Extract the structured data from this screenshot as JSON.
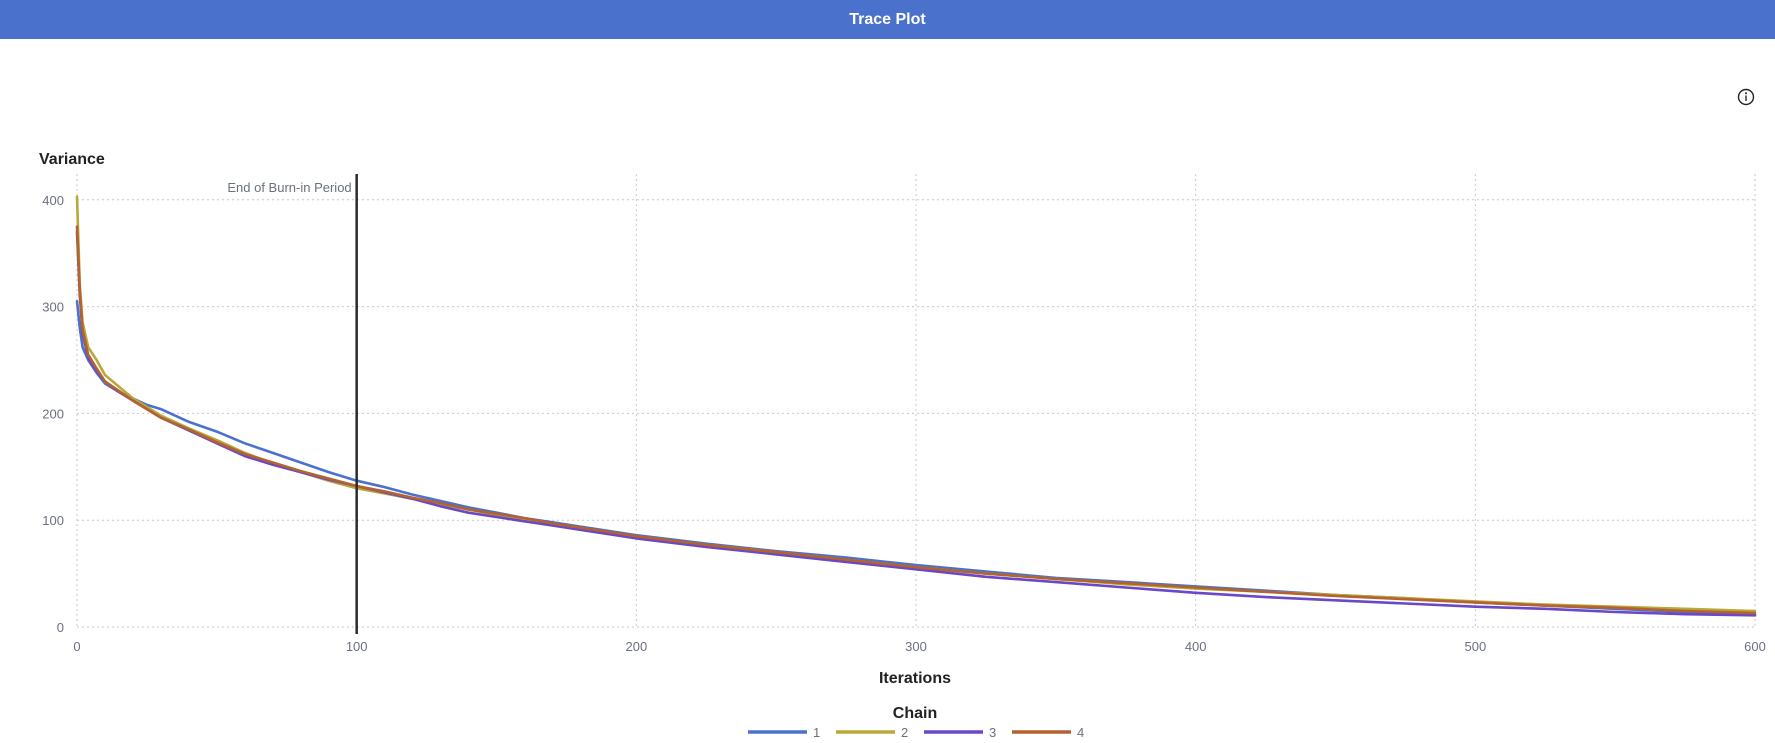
{
  "header": {
    "title": "Trace Plot"
  },
  "icons": {
    "info": "info-icon"
  },
  "chart_data": {
    "type": "line",
    "xlabel": "Iterations",
    "ylabel": "Variance",
    "xlim": [
      0,
      600
    ],
    "ylim": [
      0,
      420
    ],
    "x_ticks": [
      0,
      100,
      200,
      300,
      400,
      500,
      600
    ],
    "y_ticks": [
      0,
      100,
      200,
      300,
      400
    ],
    "grid": true,
    "reference_line": {
      "x": 100,
      "label": "End of Burn-in Period"
    },
    "legend": {
      "title": "Chain",
      "placement": "bottom"
    },
    "series": [
      {
        "name": "1",
        "color": "#4a72cc",
        "points": [
          [
            0,
            305
          ],
          [
            1,
            280
          ],
          [
            2,
            262
          ],
          [
            4,
            250
          ],
          [
            7,
            238
          ],
          [
            10,
            228
          ],
          [
            15,
            220
          ],
          [
            20,
            214
          ],
          [
            25,
            208
          ],
          [
            30,
            204
          ],
          [
            40,
            192
          ],
          [
            50,
            183
          ],
          [
            60,
            172
          ],
          [
            70,
            163
          ],
          [
            80,
            154
          ],
          [
            90,
            145
          ],
          [
            100,
            137
          ],
          [
            110,
            131
          ],
          [
            120,
            124
          ],
          [
            130,
            118
          ],
          [
            140,
            112
          ],
          [
            150,
            107
          ],
          [
            160,
            102
          ],
          [
            170,
            98
          ],
          [
            180,
            94
          ],
          [
            190,
            90
          ],
          [
            200,
            86
          ],
          [
            225,
            78
          ],
          [
            250,
            71
          ],
          [
            275,
            65
          ],
          [
            300,
            58
          ],
          [
            325,
            52
          ],
          [
            350,
            46
          ],
          [
            375,
            42
          ],
          [
            400,
            38
          ],
          [
            425,
            34
          ],
          [
            450,
            30
          ],
          [
            475,
            27
          ],
          [
            500,
            23
          ],
          [
            525,
            20
          ],
          [
            550,
            17
          ],
          [
            575,
            14
          ],
          [
            600,
            12
          ]
        ]
      },
      {
        "name": "2",
        "color": "#b9a83a",
        "points": [
          [
            0,
            403
          ],
          [
            1,
            320
          ],
          [
            2,
            285
          ],
          [
            4,
            262
          ],
          [
            7,
            250
          ],
          [
            10,
            236
          ],
          [
            15,
            225
          ],
          [
            20,
            214
          ],
          [
            25,
            206
          ],
          [
            30,
            198
          ],
          [
            40,
            186
          ],
          [
            50,
            175
          ],
          [
            60,
            163
          ],
          [
            70,
            153
          ],
          [
            80,
            145
          ],
          [
            90,
            137
          ],
          [
            100,
            130
          ],
          [
            110,
            125
          ],
          [
            120,
            120
          ],
          [
            130,
            115
          ],
          [
            140,
            110
          ],
          [
            150,
            105
          ],
          [
            160,
            101
          ],
          [
            170,
            96
          ],
          [
            180,
            92
          ],
          [
            190,
            88
          ],
          [
            200,
            84
          ],
          [
            225,
            77
          ],
          [
            250,
            70
          ],
          [
            275,
            63
          ],
          [
            300,
            56
          ],
          [
            325,
            50
          ],
          [
            350,
            45
          ],
          [
            375,
            40
          ],
          [
            400,
            36
          ],
          [
            425,
            33
          ],
          [
            450,
            30
          ],
          [
            475,
            27
          ],
          [
            500,
            24
          ],
          [
            525,
            21
          ],
          [
            550,
            19
          ],
          [
            575,
            17
          ],
          [
            600,
            15
          ]
        ]
      },
      {
        "name": "3",
        "color": "#6a48c8",
        "points": [
          [
            0,
            370
          ],
          [
            1,
            310
          ],
          [
            2,
            275
          ],
          [
            4,
            252
          ],
          [
            7,
            240
          ],
          [
            10,
            230
          ],
          [
            15,
            220
          ],
          [
            20,
            212
          ],
          [
            25,
            204
          ],
          [
            30,
            196
          ],
          [
            40,
            184
          ],
          [
            50,
            172
          ],
          [
            60,
            160
          ],
          [
            70,
            152
          ],
          [
            80,
            145
          ],
          [
            90,
            138
          ],
          [
            100,
            132
          ],
          [
            110,
            126
          ],
          [
            120,
            120
          ],
          [
            130,
            113
          ],
          [
            140,
            107
          ],
          [
            150,
            103
          ],
          [
            160,
            99
          ],
          [
            170,
            95
          ],
          [
            180,
            91
          ],
          [
            190,
            87
          ],
          [
            200,
            83
          ],
          [
            225,
            75
          ],
          [
            250,
            68
          ],
          [
            275,
            61
          ],
          [
            300,
            54
          ],
          [
            325,
            47
          ],
          [
            350,
            42
          ],
          [
            375,
            37
          ],
          [
            400,
            32
          ],
          [
            425,
            28
          ],
          [
            450,
            25
          ],
          [
            475,
            22
          ],
          [
            500,
            19
          ],
          [
            525,
            17
          ],
          [
            550,
            14
          ],
          [
            575,
            12
          ],
          [
            600,
            11
          ]
        ]
      },
      {
        "name": "4",
        "color": "#b4622e",
        "points": [
          [
            0,
            375
          ],
          [
            1,
            315
          ],
          [
            2,
            278
          ],
          [
            4,
            255
          ],
          [
            7,
            242
          ],
          [
            10,
            230
          ],
          [
            15,
            221
          ],
          [
            20,
            212
          ],
          [
            25,
            204
          ],
          [
            30,
            196
          ],
          [
            40,
            185
          ],
          [
            50,
            173
          ],
          [
            60,
            162
          ],
          [
            70,
            154
          ],
          [
            80,
            146
          ],
          [
            90,
            139
          ],
          [
            100,
            132
          ],
          [
            110,
            127
          ],
          [
            120,
            121
          ],
          [
            130,
            116
          ],
          [
            140,
            110
          ],
          [
            150,
            106
          ],
          [
            160,
            102
          ],
          [
            170,
            97
          ],
          [
            180,
            93
          ],
          [
            190,
            89
          ],
          [
            200,
            85
          ],
          [
            225,
            77
          ],
          [
            250,
            70
          ],
          [
            275,
            63
          ],
          [
            300,
            56
          ],
          [
            325,
            50
          ],
          [
            350,
            45
          ],
          [
            375,
            41
          ],
          [
            400,
            37
          ],
          [
            425,
            33
          ],
          [
            450,
            29
          ],
          [
            475,
            26
          ],
          [
            500,
            23
          ],
          [
            525,
            20
          ],
          [
            550,
            18
          ],
          [
            575,
            15
          ],
          [
            600,
            13
          ]
        ]
      }
    ]
  }
}
